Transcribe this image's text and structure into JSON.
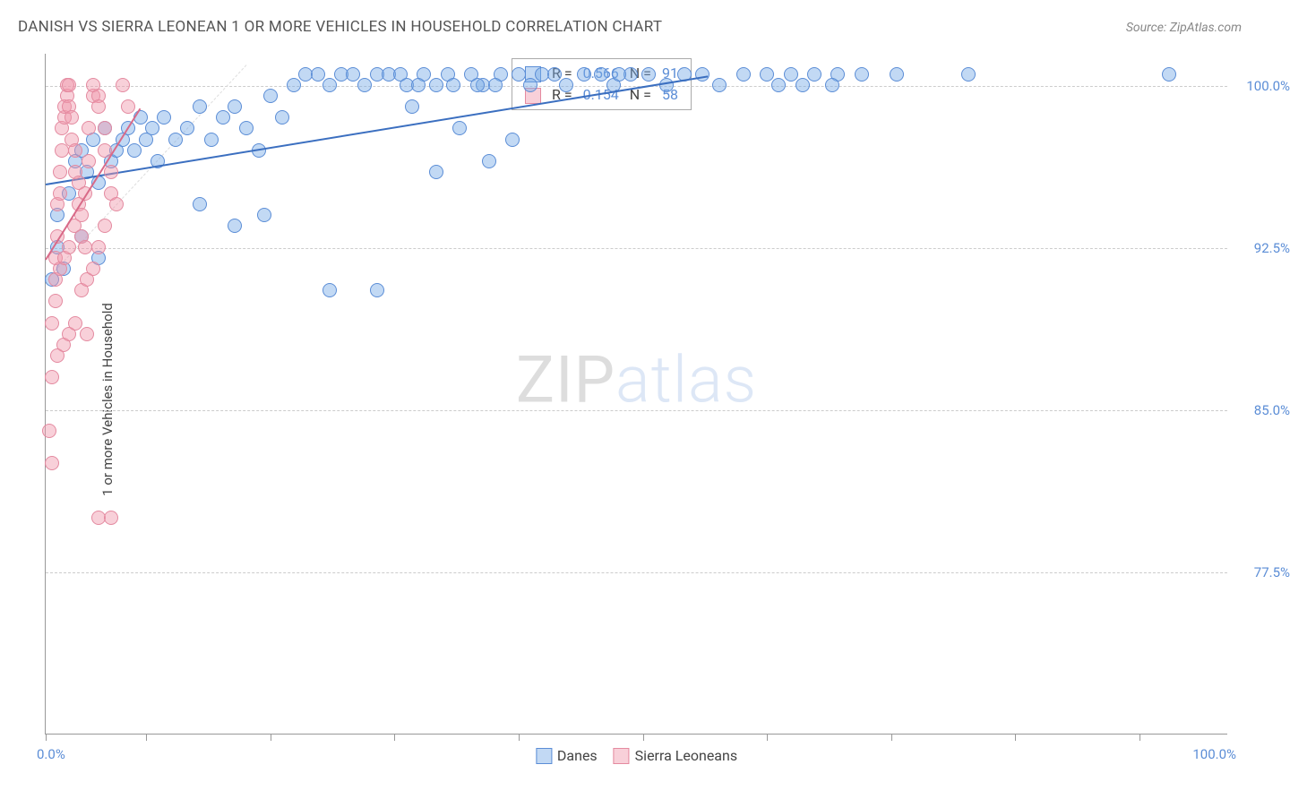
{
  "header": {
    "title": "DANISH VS SIERRA LEONEAN 1 OR MORE VEHICLES IN HOUSEHOLD CORRELATION CHART",
    "source_prefix": "Source: ",
    "source_name": "ZipAtlas.com"
  },
  "axes": {
    "ylabel": "1 or more Vehicles in Household",
    "x_min_label": "0.0%",
    "x_max_label": "100.0%",
    "y_ticks": [
      {
        "value": 100.0,
        "label": "100.0%"
      },
      {
        "value": 92.5,
        "label": "92.5%"
      },
      {
        "value": 85.0,
        "label": "85.0%"
      },
      {
        "value": 77.5,
        "label": "77.5%"
      }
    ],
    "x_ticks_pct": [
      0,
      8.5,
      19,
      29.5,
      40,
      50.5,
      61,
      71.5,
      82,
      92.5
    ],
    "xlim": [
      0,
      100
    ],
    "ylim": [
      70,
      101.5
    ]
  },
  "styling": {
    "background": "#ffffff",
    "grid_color": "#cccccc",
    "axis_color": "#999999",
    "tick_label_color": "#5b8dd6",
    "label_color": "#444444",
    "title_color": "#555555",
    "title_fontsize": 17,
    "label_fontsize": 15,
    "marker_radius": 8,
    "marker_opacity": 0.55,
    "watermark_text_a": "ZIP",
    "watermark_text_b": "atlas",
    "watermark_color_a": "rgba(120,120,120,0.25)",
    "watermark_color_b": "rgba(120,160,220,0.25)"
  },
  "series": [
    {
      "name": "Danes",
      "color_fill": "rgba(120,170,230,0.45)",
      "color_stroke": "#5b8dd6",
      "trend": {
        "x1": 0,
        "y1": 95.5,
        "x2": 56,
        "y2": 100.5,
        "color": "#3b6fc0",
        "width": 2
      },
      "stats": {
        "R": "0.566",
        "N": "91"
      },
      "points": [
        [
          0.5,
          91.0
        ],
        [
          1.0,
          94.0
        ],
        [
          1.5,
          91.5
        ],
        [
          2.0,
          95.0
        ],
        [
          2.5,
          96.5
        ],
        [
          3.0,
          97.0
        ],
        [
          3.5,
          96.0
        ],
        [
          4.0,
          97.5
        ],
        [
          4.5,
          95.5
        ],
        [
          5.0,
          98.0
        ],
        [
          5.5,
          96.5
        ],
        [
          6.0,
          97.0
        ],
        [
          6.5,
          97.5
        ],
        [
          7.0,
          98.0
        ],
        [
          7.5,
          97.0
        ],
        [
          8.0,
          98.5
        ],
        [
          8.5,
          97.5
        ],
        [
          9.0,
          98.0
        ],
        [
          9.5,
          96.5
        ],
        [
          10.0,
          98.5
        ],
        [
          11.0,
          97.5
        ],
        [
          12.0,
          98.0
        ],
        [
          13.0,
          99.0
        ],
        [
          14.0,
          97.5
        ],
        [
          15.0,
          98.5
        ],
        [
          16.0,
          99.0
        ],
        [
          17.0,
          98.0
        ],
        [
          18.0,
          97.0
        ],
        [
          19.0,
          99.5
        ],
        [
          20.0,
          98.5
        ],
        [
          21.0,
          100.0
        ],
        [
          22.0,
          100.5
        ],
        [
          23.0,
          100.5
        ],
        [
          24.0,
          100.0
        ],
        [
          25.0,
          100.5
        ],
        [
          26.0,
          100.5
        ],
        [
          27.0,
          100.0
        ],
        [
          28.0,
          100.5
        ],
        [
          29.0,
          100.5
        ],
        [
          30.0,
          100.5
        ],
        [
          31.0,
          99.0
        ],
        [
          32.0,
          100.5
        ],
        [
          33.0,
          100.0
        ],
        [
          34.0,
          100.5
        ],
        [
          35.0,
          98.0
        ],
        [
          36.0,
          100.5
        ],
        [
          37.0,
          100.0
        ],
        [
          38.5,
          100.5
        ],
        [
          39.5,
          97.5
        ],
        [
          40.0,
          100.5
        ],
        [
          41.0,
          100.0
        ],
        [
          42.0,
          100.5
        ],
        [
          43.0,
          100.5
        ],
        [
          44.0,
          100.0
        ],
        [
          45.5,
          100.5
        ],
        [
          47.0,
          100.5
        ],
        [
          48.0,
          100.0
        ],
        [
          49.5,
          100.5
        ],
        [
          51.0,
          100.5
        ],
        [
          52.5,
          100.0
        ],
        [
          54.0,
          100.5
        ],
        [
          55.5,
          100.5
        ],
        [
          57.0,
          100.0
        ],
        [
          59.0,
          100.5
        ],
        [
          61.0,
          100.5
        ],
        [
          63.0,
          100.5
        ],
        [
          65.0,
          100.5
        ],
        [
          67.0,
          100.5
        ],
        [
          69.0,
          100.5
        ],
        [
          72.0,
          100.5
        ],
        [
          78.0,
          100.5
        ],
        [
          95.0,
          100.5
        ],
        [
          24.0,
          90.5
        ],
        [
          28.0,
          90.5
        ],
        [
          37.5,
          96.5
        ],
        [
          33.0,
          96.0
        ],
        [
          13.0,
          94.5
        ],
        [
          16.0,
          93.5
        ],
        [
          18.5,
          94.0
        ],
        [
          3.0,
          93.0
        ],
        [
          4.5,
          92.0
        ],
        [
          1.0,
          92.5
        ],
        [
          62.0,
          100.0
        ],
        [
          64.0,
          100.0
        ],
        [
          66.5,
          100.0
        ],
        [
          48.5,
          100.5
        ],
        [
          30.5,
          100.0
        ],
        [
          31.5,
          100.0
        ],
        [
          34.5,
          100.0
        ],
        [
          36.5,
          100.0
        ],
        [
          38.0,
          100.0
        ]
      ]
    },
    {
      "name": "Sierra Leoneans",
      "color_fill": "rgba(240,150,170,0.45)",
      "color_stroke": "#e48aa0",
      "trend": {
        "x1": 0,
        "y1": 92.0,
        "x2": 8,
        "y2": 99.0,
        "color": "#d86a88",
        "width": 2
      },
      "stats": {
        "R": "0.154",
        "N": "58"
      },
      "points": [
        [
          0.3,
          84.0
        ],
        [
          0.5,
          86.5
        ],
        [
          0.5,
          89.0
        ],
        [
          0.8,
          90.0
        ],
        [
          0.8,
          92.0
        ],
        [
          1.0,
          93.0
        ],
        [
          1.0,
          94.5
        ],
        [
          1.2,
          95.0
        ],
        [
          1.2,
          96.0
        ],
        [
          1.4,
          97.0
        ],
        [
          1.4,
          98.0
        ],
        [
          1.6,
          98.5
        ],
        [
          1.6,
          99.0
        ],
        [
          1.8,
          99.5
        ],
        [
          1.8,
          100.0
        ],
        [
          2.0,
          100.0
        ],
        [
          2.0,
          99.0
        ],
        [
          2.2,
          98.5
        ],
        [
          2.2,
          97.5
        ],
        [
          2.5,
          97.0
        ],
        [
          2.5,
          96.0
        ],
        [
          2.8,
          95.5
        ],
        [
          2.8,
          94.5
        ],
        [
          3.0,
          94.0
        ],
        [
          3.0,
          93.0
        ],
        [
          3.3,
          92.5
        ],
        [
          3.3,
          95.0
        ],
        [
          3.6,
          96.5
        ],
        [
          3.6,
          98.0
        ],
        [
          4.0,
          99.5
        ],
        [
          4.0,
          100.0
        ],
        [
          4.5,
          99.5
        ],
        [
          4.5,
          99.0
        ],
        [
          5.0,
          98.0
        ],
        [
          5.0,
          97.0
        ],
        [
          5.5,
          96.0
        ],
        [
          5.5,
          95.0
        ],
        [
          6.0,
          94.5
        ],
        [
          6.5,
          100.0
        ],
        [
          7.0,
          99.0
        ],
        [
          1.0,
          87.5
        ],
        [
          1.5,
          88.0
        ],
        [
          2.0,
          88.5
        ],
        [
          0.5,
          82.5
        ],
        [
          2.5,
          89.0
        ],
        [
          3.5,
          88.5
        ],
        [
          4.5,
          80.0
        ],
        [
          5.5,
          80.0
        ],
        [
          0.8,
          91.0
        ],
        [
          1.2,
          91.5
        ],
        [
          1.6,
          92.0
        ],
        [
          2.0,
          92.5
        ],
        [
          2.4,
          93.5
        ],
        [
          3.0,
          90.5
        ],
        [
          3.5,
          91.0
        ],
        [
          4.0,
          91.5
        ],
        [
          4.5,
          92.5
        ],
        [
          5.0,
          93.5
        ]
      ]
    }
  ],
  "stats_legend": {
    "rows": [
      {
        "series_idx": 0,
        "R_label": "R =",
        "N_label": "N ="
      },
      {
        "series_idx": 1,
        "R_label": "R =",
        "N_label": "N ="
      }
    ]
  },
  "bottom_legend": {
    "items": [
      {
        "series_idx": 0
      },
      {
        "series_idx": 1
      }
    ]
  }
}
